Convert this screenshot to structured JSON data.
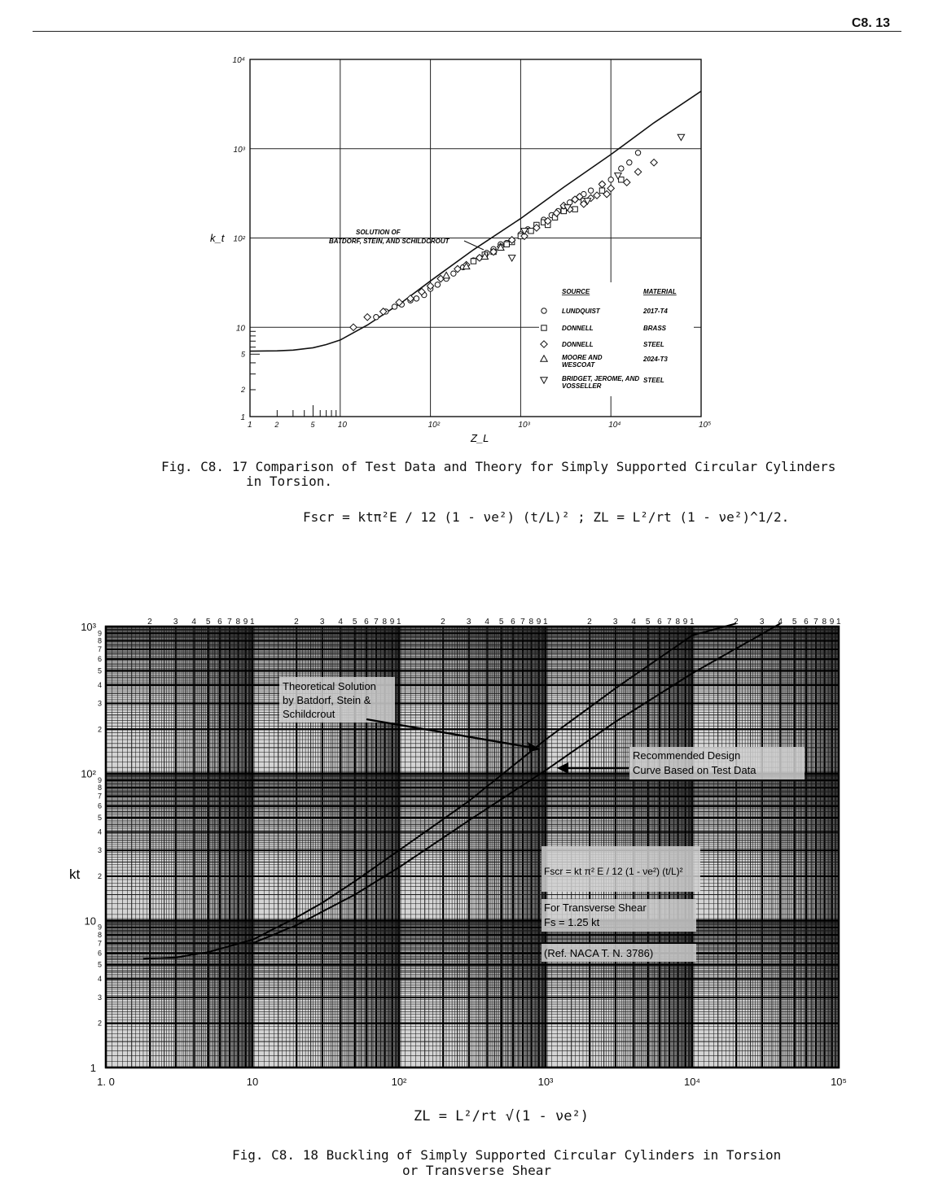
{
  "page": {
    "number": "C8. 13"
  },
  "fig1": {
    "caption_line1": "Fig.  C8. 17  Comparison of Test Data and Theory for Simply Supported Circular Cylinders",
    "caption_line2": "in Torsion.",
    "formula": "Fscr = ktπ²E / 12 (1 - νe²) (t/L)² ;  ZL = L²/rt (1 - νe²)^1/2."
  },
  "fig2": {
    "caption_line1": "Fig.  C8. 18  Buckling of Simply Supported Circular Cylinders in Torsion",
    "caption_line2": "or Transverse Shear",
    "xlabel": "ZL = L²/rt √(1 - νe²)",
    "ylabel": "kt"
  },
  "chart_data": [
    {
      "type": "scatter",
      "title": "",
      "xlabel": "Z_L",
      "ylabel": "k_t",
      "x_scale": "log",
      "y_scale": "log",
      "xlim": [
        1,
        100000
      ],
      "ylim": [
        1,
        10000
      ],
      "x_ticks": [
        "1",
        "10",
        "10²",
        "10³",
        "10⁴",
        "10⁵"
      ],
      "y_ticks": [
        "1",
        "10",
        "10²",
        "10³",
        "10⁴"
      ],
      "x_minor_labels": [
        "2",
        "5"
      ],
      "y_minor_labels": [
        "2",
        "5"
      ],
      "grid": true,
      "annotation": "SOLUTION OF BATDORF, STEIN, AND SCHILDCROUT",
      "legend": {
        "placement": "bottom-right",
        "header_source": "SOURCE",
        "header_material": "MATERIAL",
        "entries": [
          {
            "symbol": "circle",
            "source": "LUNDQUIST",
            "material": "2017-T4"
          },
          {
            "symbol": "square",
            "source": "DONNELL",
            "material": "BRASS"
          },
          {
            "symbol": "diamond",
            "source": "DONNELL",
            "material": "STEEL"
          },
          {
            "symbol": "triangle",
            "source": "MOORE AND WESCOAT",
            "material": "2024-T3"
          },
          {
            "symbol": "triangle-down",
            "source": "BRIDGET, JEROME, AND VOSSELLER",
            "material": "STEEL"
          }
        ]
      },
      "theory_curve": {
        "x": [
          1,
          2,
          3,
          5,
          7,
          10,
          20,
          50,
          100,
          300,
          1000,
          3000,
          10000,
          30000,
          100000
        ],
        "y": [
          5.4,
          5.45,
          5.55,
          5.9,
          6.4,
          7.2,
          10.6,
          19.5,
          33,
          74,
          165,
          370,
          860,
          1950,
          4400
        ]
      },
      "series": [
        {
          "name": "LUNDQUIST 2017-T4",
          "symbol": "circle",
          "x": [
            25,
            32,
            40,
            48,
            60,
            70,
            85,
            100,
            120,
            150,
            180,
            230,
            300,
            350,
            420,
            500,
            600,
            700,
            800,
            1000,
            1200,
            1500,
            1800,
            2200,
            2600,
            3000,
            3500,
            4000,
            4500,
            5000,
            6000,
            8000,
            10000,
            13000,
            16000,
            20000
          ],
          "y": [
            13,
            15,
            17,
            18,
            20,
            21,
            23,
            27,
            30,
            35,
            40,
            47,
            56,
            60,
            68,
            75,
            85,
            88,
            95,
            110,
            125,
            140,
            160,
            180,
            200,
            220,
            250,
            270,
            290,
            310,
            340,
            400,
            450,
            600,
            700,
            900
          ]
        },
        {
          "name": "DONNELL BRASS",
          "symbol": "square",
          "x": [
            300,
            400,
            500,
            700,
            800,
            1000,
            1300,
            1500,
            1800,
            2000,
            2400,
            3000,
            4000,
            5000,
            8000,
            13000
          ],
          "y": [
            55,
            65,
            70,
            85,
            90,
            105,
            120,
            140,
            150,
            140,
            170,
            200,
            210,
            260,
            340,
            450
          ]
        },
        {
          "name": "DONNELL STEEL",
          "symbol": "diamond",
          "x": [
            14,
            20,
            30,
            45,
            60,
            80,
            100,
            130,
            200,
            250,
            350,
            500,
            600,
            800,
            1100,
            1500,
            2000,
            2500,
            3000,
            3500,
            4000,
            4500,
            5000,
            6000,
            7000,
            8000,
            9000,
            10000,
            15000,
            20000,
            30000
          ],
          "y": [
            10,
            13,
            15,
            19,
            21,
            25,
            29,
            35,
            45,
            50,
            60,
            70,
            80,
            95,
            105,
            130,
            155,
            190,
            230,
            210,
            270,
            290,
            240,
            280,
            300,
            400,
            310,
            360,
            420,
            550,
            700
          ]
        },
        {
          "name": "MOORE AND WESCOAT 2024-T3",
          "symbol": "triangle",
          "x": [
            150,
            250,
            400,
            600
          ],
          "y": [
            38,
            48,
            62,
            78
          ]
        },
        {
          "name": "BRIDGET, JEROME, AND VOSSELLER STEEL",
          "symbol": "triangle-down",
          "x": [
            800,
            1100,
            3300,
            5500,
            12000,
            60000
          ],
          "y": [
            60,
            120,
            220,
            260,
            500,
            1350
          ]
        }
      ]
    },
    {
      "type": "line",
      "title": "",
      "xlabel": "ZL",
      "ylabel": "kt",
      "x_scale": "log",
      "y_scale": "log",
      "xlim": [
        1,
        100000
      ],
      "ylim": [
        1,
        1000
      ],
      "x_ticks": [
        "1. 0",
        "10",
        "10²",
        "10³",
        "10⁴",
        "10⁵"
      ],
      "y_ticks": [
        "1",
        "10",
        "10²",
        "10³"
      ],
      "minor_tick_labels": [
        "2",
        "3",
        "4",
        "5",
        "6",
        "7",
        "8",
        "9",
        "1"
      ],
      "grid": true,
      "annotations": [
        "Theoretical Solution by Batdorf, Stein & Schildcrout",
        "Recommended Design Curve Based on Test Data",
        "Fscr = kt π² E / 12 (1 - νe²) (t/L)²",
        "For Transverse Shear Fs = 1.25 kt",
        "(Ref. NACA T. N. 3786)"
      ],
      "series": [
        {
          "name": "Theoretical Solution by Batdorf, Stein & Schildcrout",
          "x": [
            1.8,
            3,
            5,
            10,
            20,
            30,
            50,
            100,
            300,
            1000,
            3000,
            10000,
            20000
          ],
          "y": [
            5.5,
            5.6,
            6.1,
            7.4,
            10.5,
            13.2,
            18.5,
            30,
            65,
            170,
            380,
            870,
            1050
          ]
        },
        {
          "name": "Recommended Design Curve Based on Test Data",
          "x": [
            10,
            20,
            30,
            50,
            100,
            300,
            1000,
            3000,
            10000,
            40000
          ],
          "y": [
            7.0,
            9.3,
            11.5,
            15,
            23,
            48,
            105,
            225,
            480,
            1050
          ]
        }
      ]
    }
  ]
}
